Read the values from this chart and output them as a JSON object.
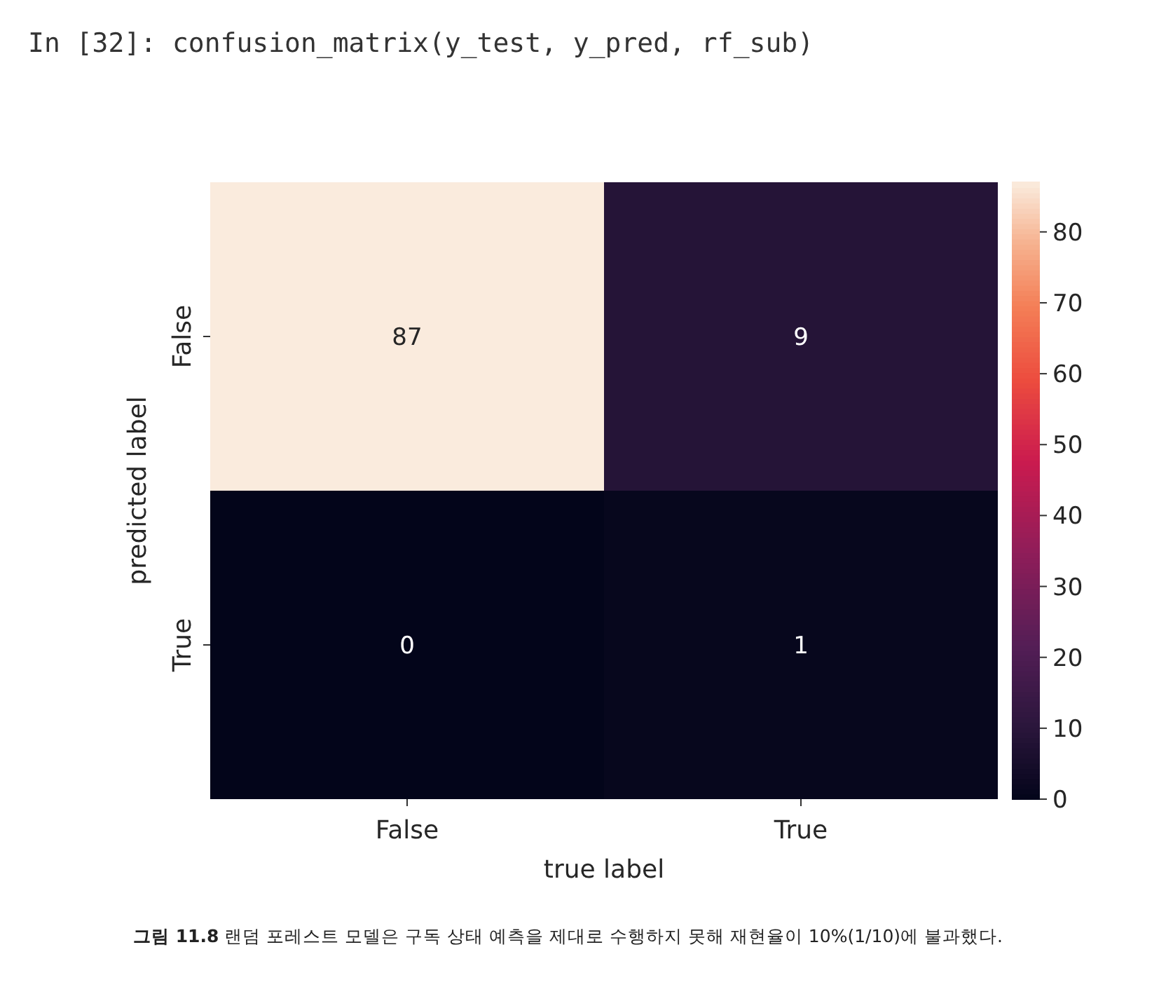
{
  "chart_data": {
    "type": "heatmap",
    "title": "In [32]: confusion_matrix(y_test, y_pred, rf_sub)",
    "categories": [
      "False",
      "True"
    ],
    "y_categories": [
      "False",
      "True"
    ],
    "cells": [
      [
        87,
        9
      ],
      [
        0,
        1
      ]
    ],
    "data_labels": true,
    "xlabel": "true label",
    "ylabel": "predicted label",
    "clim": [
      0,
      87
    ],
    "cticks": [
      0,
      10,
      20,
      30,
      40,
      50,
      60,
      70,
      80
    ],
    "annotations": [
      "**그림 11.8** 랜덤 포레스트 모델은 구독 상태 예측을 제대로 수행하지 못해 재현율이 10%(1/10)에 불과했다."
    ]
  }
}
